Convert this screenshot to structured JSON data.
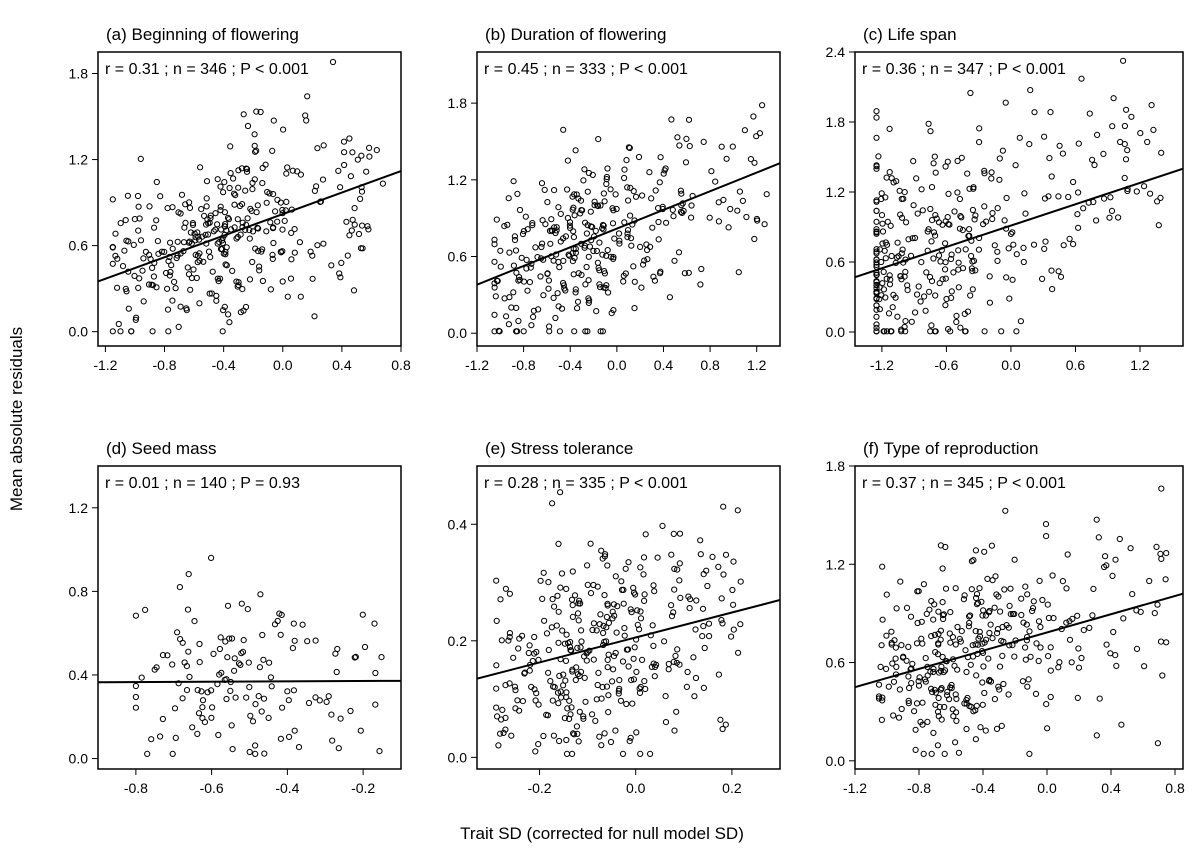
{
  "figure": {
    "ylabel": "Mean absolute residuals",
    "xlabel": "Trait SD (corrected for null model SD)"
  },
  "chart_data": [
    {
      "type": "scatter",
      "title": "(a) Beginning of flowering",
      "stats": "r = 0.31 ; n = 346 ; P < 0.001",
      "xlim": [
        -1.25,
        0.8
      ],
      "ylim": [
        -0.1,
        1.95
      ],
      "xticks": [
        -1.2,
        -0.8,
        -0.4,
        0.0,
        0.4,
        0.8
      ],
      "xtick_labels": [
        "-1.2",
        "-0.8",
        "-0.4",
        "0.0",
        "0.4",
        "0.8"
      ],
      "yticks": [
        0.0,
        0.6,
        1.2,
        1.8
      ],
      "ytick_labels": [
        "0.0",
        "0.6",
        "1.2",
        "1.8"
      ],
      "n": 346,
      "cloud": {
        "x_range": [
          -1.15,
          0.7
        ],
        "x_center": -0.45,
        "y_base": 0.65,
        "y_spread": 0.32
      },
      "fit": {
        "x": [
          -1.25,
          0.8
        ],
        "y": [
          0.35,
          1.12
        ]
      }
    },
    {
      "type": "scatter",
      "title": "(b) Duration of flowering",
      "stats": "r = 0.45 ; n = 333 ; P < 0.001",
      "xlim": [
        -1.2,
        1.4
      ],
      "ylim": [
        -0.1,
        2.2
      ],
      "xticks": [
        -1.2,
        -0.8,
        -0.4,
        0.0,
        0.4,
        0.8,
        1.2
      ],
      "xtick_labels": [
        "-1.2",
        "-0.8",
        "-0.4",
        "0.0",
        "0.4",
        "0.8",
        "1.2"
      ],
      "yticks": [
        0.0,
        0.6,
        1.2,
        1.8
      ],
      "ytick_labels": [
        "0.0",
        "0.6",
        "1.2",
        "1.8"
      ],
      "n": 333,
      "cloud": {
        "x_range": [
          -1.05,
          1.3
        ],
        "x_center": -0.3,
        "y_base": 0.72,
        "y_spread": 0.35
      },
      "fit": {
        "x": [
          -1.2,
          1.4
        ],
        "y": [
          0.38,
          1.33
        ]
      }
    },
    {
      "type": "scatter",
      "title": "(c) Life span",
      "stats": "r = 0.36 ; n = 347 ; P < 0.001",
      "xlim": [
        -1.45,
        1.6
      ],
      "ylim": [
        -0.12,
        2.4
      ],
      "xticks": [
        -1.2,
        -0.6,
        0.0,
        0.6,
        1.2
      ],
      "xtick_labels": [
        "-1.2",
        "-0.6",
        "0.0",
        "0.6",
        "1.2"
      ],
      "yticks": [
        0.0,
        0.6,
        1.2,
        1.8,
        2.4
      ],
      "ytick_labels": [
        "0.0",
        "0.6",
        "1.2",
        "1.8",
        "2.4"
      ],
      "n": 347,
      "cloud": {
        "x_range": [
          -1.25,
          1.4
        ],
        "x_center": -0.9,
        "y_base": 0.7,
        "y_spread": 0.45
      },
      "fit": {
        "x": [
          -1.45,
          1.6
        ],
        "y": [
          0.47,
          1.4
        ]
      }
    },
    {
      "type": "scatter",
      "title": "(d) Seed mass",
      "stats": "r = 0.01 ; n = 140 ; P = 0.93",
      "xlim": [
        -0.9,
        -0.1
      ],
      "ylim": [
        -0.05,
        1.4
      ],
      "xticks": [
        -0.8,
        -0.6,
        -0.4,
        -0.2
      ],
      "xtick_labels": [
        "-0.8",
        "-0.6",
        "-0.4",
        "-0.2"
      ],
      "yticks": [
        0.0,
        0.4,
        0.8,
        1.2
      ],
      "ytick_labels": [
        "0.0",
        "0.4",
        "0.8",
        "1.2"
      ],
      "n": 140,
      "cloud": {
        "x_range": [
          -0.8,
          -0.15
        ],
        "x_center": -0.58,
        "y_base": 0.32,
        "y_spread": 0.22
      },
      "fit": {
        "x": [
          -0.9,
          -0.1
        ],
        "y": [
          0.365,
          0.372
        ]
      }
    },
    {
      "type": "scatter",
      "title": "(e) Stress tolerance",
      "stats": "r = 0.28 ; n = 335 ; P < 0.001",
      "xlim": [
        -0.33,
        0.3
      ],
      "ylim": [
        -0.02,
        0.5
      ],
      "xticks": [
        -0.2,
        0.0,
        0.2
      ],
      "xtick_labels": [
        "-0.2",
        "0.0",
        "0.2"
      ],
      "yticks": [
        0.0,
        0.2,
        0.4
      ],
      "ytick_labels": [
        "0.0",
        "0.2",
        "0.4"
      ],
      "n": 335,
      "cloud": {
        "x_range": [
          -0.29,
          0.22
        ],
        "x_center": -0.1,
        "y_base": 0.17,
        "y_spread": 0.09
      },
      "fit": {
        "x": [
          -0.33,
          0.3
        ],
        "y": [
          0.135,
          0.27
        ]
      }
    },
    {
      "type": "scatter",
      "title": "(f) Type of reproduction",
      "stats": "r = 0.37 ; n = 345 ; P < 0.001",
      "xlim": [
        -1.2,
        0.85
      ],
      "ylim": [
        -0.05,
        1.8
      ],
      "xticks": [
        -1.2,
        -0.8,
        -0.4,
        0.0,
        0.4,
        0.8
      ],
      "xtick_labels": [
        "-1.2",
        "-0.8",
        "-0.4",
        "0.0",
        "0.4",
        "0.8"
      ],
      "yticks": [
        0.0,
        0.6,
        1.2,
        1.8
      ],
      "ytick_labels": [
        "0.0",
        "0.6",
        "1.2",
        "1.8"
      ],
      "n": 345,
      "cloud": {
        "x_range": [
          -1.05,
          0.75
        ],
        "x_center": -0.5,
        "y_base": 0.6,
        "y_spread": 0.3
      },
      "fit": {
        "x": [
          -1.2,
          0.85
        ],
        "y": [
          0.45,
          1.02
        ]
      }
    }
  ]
}
